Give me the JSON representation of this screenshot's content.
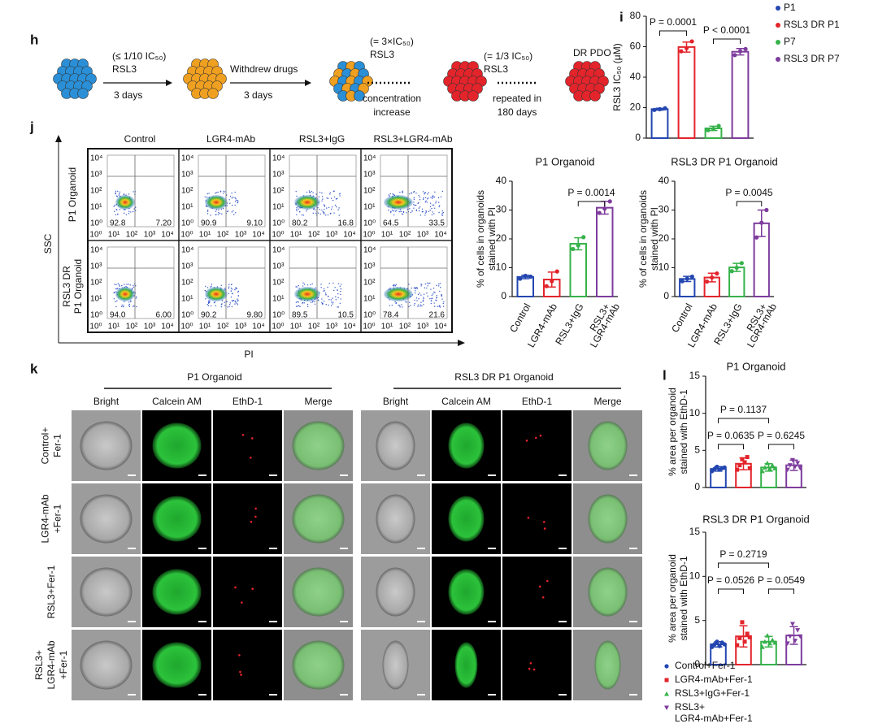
{
  "panel_h": {
    "label": "h",
    "arrows": [
      {
        "above": [
          "(≤ 1/10 IC₅₀)",
          "RSL3"
        ],
        "below": [
          "3 days"
        ]
      },
      {
        "above": [
          "Withdrew drugs"
        ],
        "below": [
          "3 days"
        ]
      },
      {
        "above": [
          "(= 3×IC₅₀)",
          "RSL3"
        ],
        "below": [
          "concentration",
          "increase"
        ]
      },
      {
        "above": [
          "(= 1/3 IC₅₀)",
          "RSL3"
        ],
        "below": [
          "repeated in",
          "180 days"
        ]
      }
    ],
    "result_label": "DR PDO"
  },
  "panel_i": {
    "label": "i",
    "type": "bar",
    "y_label": "RSL3 IC₅₀ (μM)",
    "ylim": [
      0,
      80
    ],
    "yticks": [
      0,
      20,
      40,
      60,
      80
    ],
    "categories": [
      "P1",
      "RSL3 DR P1",
      "P7",
      "RSL3 DR P7"
    ],
    "colors": [
      "#2346b0",
      "#e3242b",
      "#36b24a",
      "#7e3c9d"
    ],
    "values": [
      19,
      59.8,
      6.4,
      56.7
    ],
    "errors": [
      0.6,
      3.3,
      1.4,
      2.1
    ],
    "points": [
      [
        18.5,
        19,
        19.6
      ],
      [
        57,
        59,
        63.5
      ],
      [
        5.2,
        6,
        8
      ],
      [
        54.5,
        57,
        58.5
      ]
    ],
    "comparisons": [
      "P = 0.0001",
      "P < 0.0001"
    ]
  },
  "panel_j": {
    "label": "j",
    "y_axis": "SSC",
    "x_axis": "PI",
    "columns": [
      "Control",
      "LGR4-mAb",
      "RSL3+IgG",
      "RSL3+LGR4-mAb"
    ],
    "rows": [
      [
        "P1 Organoid"
      ],
      [
        "RSL3 DR",
        "P1 Organoid"
      ]
    ],
    "tick_labels": [
      "10⁰",
      "10¹",
      "10²",
      "10³",
      "10⁴"
    ],
    "quadrants": [
      [
        [
          "92.8",
          "7.20"
        ],
        [
          "90.9",
          "9.10"
        ],
        [
          "80.2",
          "16.8"
        ],
        [
          "64.5",
          "33.5"
        ]
      ],
      [
        [
          "94.0",
          "6.00"
        ],
        [
          "90.2",
          "9.80"
        ],
        [
          "89.5",
          "10.5"
        ],
        [
          "78.4",
          "21.6"
        ]
      ]
    ],
    "charts": [
      {
        "type": "bar",
        "title": "P1 Organoid",
        "y_label": [
          "% of  cells in organoids",
          "stained with PI"
        ],
        "ylim": [
          0,
          40
        ],
        "yticks": [
          0,
          10,
          20,
          30,
          40
        ],
        "categories": [
          [
            "Control"
          ],
          [
            "LGR4-mAb"
          ],
          [
            "RSL3+IgG"
          ],
          [
            "RSL3+",
            "LGR4-mAb"
          ]
        ],
        "colors": [
          "#2346b0",
          "#e3242b",
          "#36b24a",
          "#7e3c9d"
        ],
        "values": [
          6.8,
          5.9,
          18.3,
          30.8
        ],
        "errors": [
          0.6,
          2.6,
          2.1,
          2.2
        ],
        "points": [
          [
            6.2,
            7.2,
            6.9
          ],
          [
            3.6,
            5.3,
            8.7
          ],
          [
            16.5,
            17.7,
            20.6
          ],
          [
            29,
            30.5,
            33
          ]
        ],
        "comparisons": [
          "P = 0.0014"
        ]
      },
      {
        "type": "bar",
        "title": "RSL3 DR P1 Organoid",
        "y_label": [
          "% of  cells in organoids",
          "stained with PI"
        ],
        "ylim": [
          0,
          40
        ],
        "yticks": [
          0,
          10,
          20,
          30,
          40
        ],
        "categories": [
          [
            "Control"
          ],
          [
            "LGR4-mAb"
          ],
          [
            "RSL3+IgG"
          ],
          [
            "RSL3+",
            "LGR4-mAb"
          ]
        ],
        "colors": [
          "#2346b0",
          "#e3242b",
          "#36b24a",
          "#7e3c9d"
        ],
        "values": [
          6.1,
          6.6,
          10.1,
          25.4
        ],
        "errors": [
          0.9,
          1.5,
          1.4,
          4.6
        ],
        "points": [
          [
            5.3,
            6.2,
            6.9
          ],
          [
            5.2,
            6.6,
            8
          ],
          [
            8.8,
            10,
            11.6
          ],
          [
            20.5,
            25.6,
            30
          ]
        ],
        "comparisons": [
          "P = 0.0045"
        ]
      }
    ]
  },
  "panel_k": {
    "label": "k",
    "groups": [
      "P1 Organoid",
      "RSL3 DR P1 Organoid"
    ],
    "columns": [
      "Bright",
      "Calcein AM",
      "EthD-1",
      "Merge"
    ],
    "rows": [
      [
        "Control+",
        "Fer-1"
      ],
      [
        "LGR4-mAb",
        "+Fer-1"
      ],
      [
        "RSL3+Fer-1"
      ],
      [
        "RSL3+",
        "LGR4-mAb",
        "+Fer-1"
      ]
    ]
  },
  "panel_l": {
    "label": "l",
    "charts": [
      {
        "type": "bar",
        "title": "P1 Organoid",
        "y_label": [
          "% area  per organoid",
          "stained with EthD-1"
        ],
        "ylim": [
          0,
          15
        ],
        "yticks": [
          0,
          5,
          10,
          15
        ],
        "colors": [
          "#2346b0",
          "#e3242b",
          "#36b24a",
          "#7e3c9d"
        ],
        "values": [
          2.5,
          3.2,
          2.7,
          3.0
        ],
        "errors": [
          0.3,
          0.8,
          0.5,
          0.7
        ],
        "points": [
          [
            2.2,
            2.5,
            2.8,
            2.4,
            2.6,
            2.7
          ],
          [
            2.4,
            3.0,
            3.8,
            3.4,
            4.1,
            2.6
          ],
          [
            2.2,
            2.7,
            3.3,
            2.5,
            3.0,
            2.6
          ],
          [
            2.4,
            3.0,
            3.7,
            2.8,
            3.3,
            2.6
          ]
        ],
        "comparisons": [
          "P = 0.1137",
          "P = 0.0635",
          "P = 0.6245"
        ]
      },
      {
        "type": "bar",
        "title": "RSL3 DR P1 Organoid",
        "y_label": [
          "% area  per organoid",
          "stained with EthD-1"
        ],
        "ylim": [
          0,
          15
        ],
        "yticks": [
          0,
          5,
          10,
          15
        ],
        "colors": [
          "#2346b0",
          "#e3242b",
          "#36b24a",
          "#7e3c9d"
        ],
        "values": [
          2.3,
          3.2,
          2.6,
          3.3
        ],
        "errors": [
          0.3,
          1.2,
          0.6,
          1.0
        ],
        "points": [
          [
            2.0,
            2.3,
            2.6,
            2.1,
            2.5,
            2.3
          ],
          [
            2.2,
            3.0,
            4.8,
            2.6,
            3.5,
            3.1
          ],
          [
            2.0,
            2.6,
            3.3,
            2.4,
            2.8,
            2.5
          ],
          [
            2.4,
            3.2,
            4.6,
            2.7,
            3.9,
            3.2
          ]
        ],
        "comparisons": [
          "P = 0.2719",
          "P = 0.0526",
          "P = 0.0549"
        ]
      }
    ],
    "legend": [
      [
        "Control+Fer-1"
      ],
      [
        "LGR4-mAb+Fer-1"
      ],
      [
        "RSL3+IgG+Fer-1"
      ],
      [
        "RSL3+",
        "LGR4-mAb+Fer-1"
      ]
    ]
  }
}
